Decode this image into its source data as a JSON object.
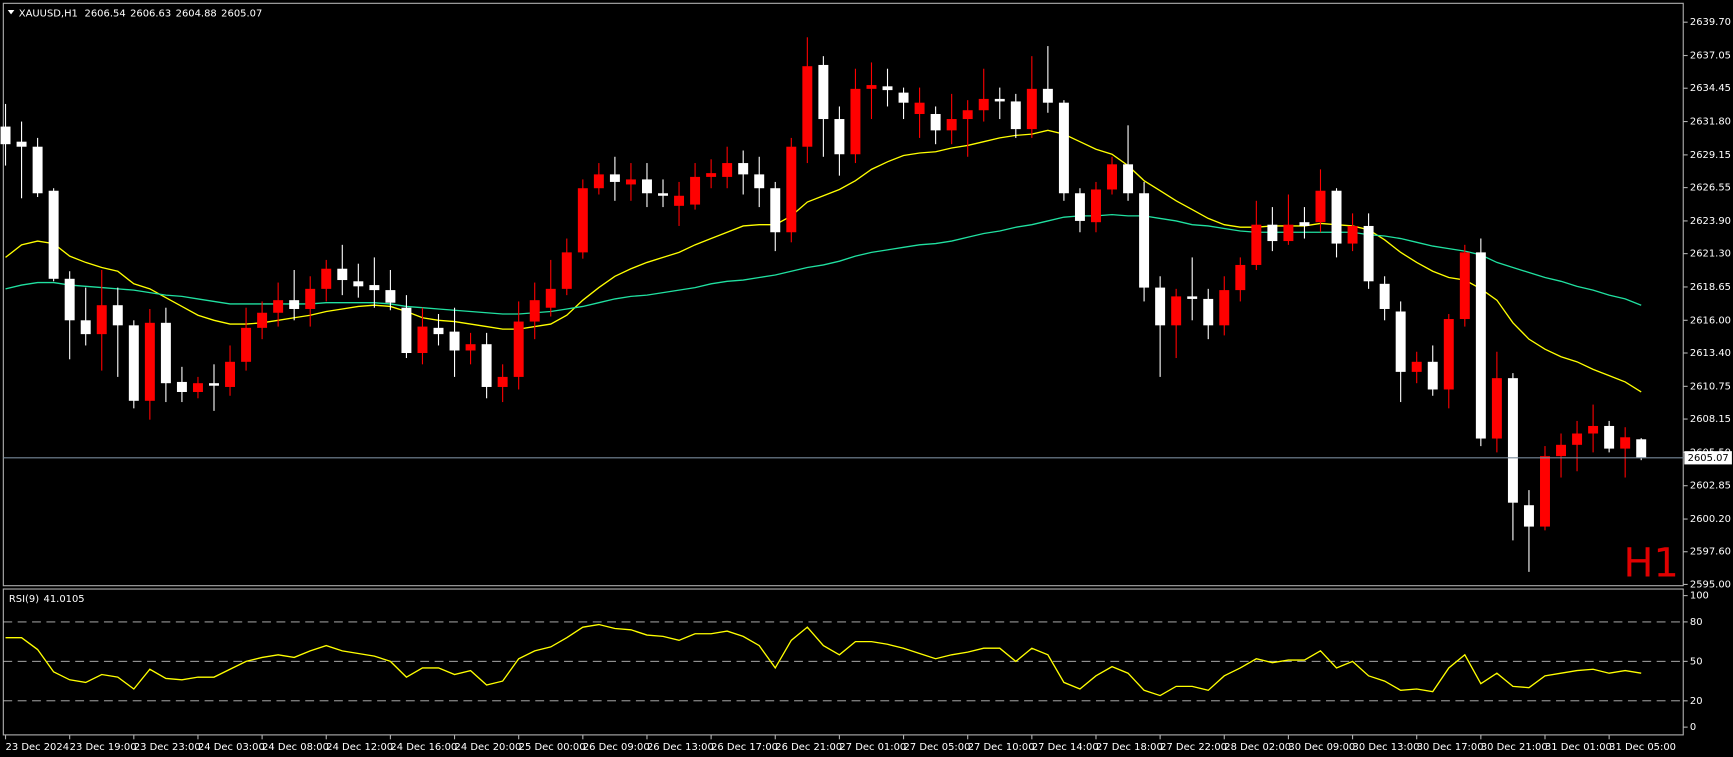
{
  "chart_data": [
    {
      "type": "candlestick",
      "symbol": "XAUUSD,H1",
      "timeframe": "H1",
      "up_color": "#ff0000",
      "down_color": "#ffffff",
      "price_line_color": "#778899",
      "categories": [
        "23 Dec 2024",
        null,
        null,
        null,
        "23 Dec 19:00",
        null,
        null,
        null,
        "23 Dec 23:00",
        null,
        null,
        null,
        "24 Dec 03:00",
        null,
        null,
        null,
        "24 Dec 08:00",
        null,
        null,
        null,
        "24 Dec 12:00",
        null,
        null,
        null,
        "24 Dec 16:00",
        null,
        null,
        null,
        "24 Dec 20:00",
        null,
        null,
        null,
        "25 Dec 00:00",
        null,
        null,
        null,
        "26 Dec 09:00",
        null,
        null,
        null,
        "26 Dec 13:00",
        null,
        null,
        null,
        "26 Dec 17:00",
        null,
        null,
        null,
        "26 Dec 21:00",
        null,
        null,
        null,
        "27 Dec 01:00",
        null,
        null,
        null,
        "27 Dec 05:00",
        null,
        null,
        null,
        "27 Dec 10:00",
        null,
        null,
        null,
        "27 Dec 14:00",
        null,
        null,
        null,
        "27 Dec 18:00",
        null,
        null,
        null,
        "27 Dec 22:00",
        null,
        null,
        null,
        "28 Dec 02:00",
        null,
        null,
        null,
        "30 Dec 09:00",
        null,
        null,
        null,
        "30 Dec 13:00",
        null,
        null,
        null,
        "30 Dec 17:00",
        null,
        null,
        null,
        "30 Dec 21:00",
        null,
        null,
        null,
        "31 Dec 01:00",
        null,
        null,
        null,
        "31 Dec 05:00",
        null,
        null
      ],
      "open": [
        2631.4,
        2630.2,
        2629.8,
        2626.3,
        2619.3,
        2616.0,
        2614.9,
        2617.2,
        2615.6,
        2609.6,
        2615.8,
        2611.1,
        2610.3,
        2611.0,
        2610.7,
        2612.7,
        2615.4,
        2616.6,
        2617.6,
        2616.9,
        2618.5,
        2620.1,
        2619.1,
        2618.8,
        2618.4,
        2617.0,
        2613.4,
        2615.4,
        2615.1,
        2613.6,
        2614.1,
        2610.7,
        2611.5,
        2615.9,
        2617.0,
        2618.5,
        2621.4,
        2626.5,
        2627.6,
        2626.8,
        2627.2,
        2626.1,
        2625.1,
        2625.2,
        2627.4,
        2627.4,
        2628.5,
        2627.6,
        2626.5,
        2623.0,
        2629.8,
        2636.3,
        2632.0,
        2629.2,
        2634.4,
        2634.6,
        2634.1,
        2632.4,
        2632.4,
        2631.1,
        2632.0,
        2632.7,
        2633.6,
        2633.4,
        2631.2,
        2634.4,
        2633.3,
        2626.1,
        2623.8,
        2626.4,
        2628.4,
        2626.1,
        2618.6,
        2615.6,
        2617.9,
        2617.7,
        2615.6,
        2618.4,
        2620.4,
        2623.6,
        2622.3,
        2623.8,
        2623.8,
        2626.3,
        2622.1,
        2623.5,
        2618.9,
        2616.7,
        2611.9,
        2612.7,
        2610.5,
        2616.1,
        2621.4,
        2606.6,
        2611.4,
        2601.3,
        2599.6,
        2605.2,
        2606.1,
        2607.0,
        2607.6,
        2605.8,
        2606.54
      ],
      "high": [
        2633.2,
        2631.8,
        2630.5,
        2626.5,
        2619.9,
        2618.6,
        2620.0,
        2618.6,
        2616.0,
        2616.9,
        2617.0,
        2612.3,
        2611.5,
        2612.5,
        2614.0,
        2617.0,
        2617.5,
        2619.0,
        2620.0,
        2619.5,
        2620.8,
        2622.0,
        2620.5,
        2621.0,
        2620.0,
        2618.0,
        2617.0,
        2616.5,
        2617.0,
        2615.0,
        2615.0,
        2612.5,
        2617.5,
        2619.0,
        2620.8,
        2622.5,
        2627.2,
        2628.5,
        2629.0,
        2628.5,
        2628.5,
        2627.2,
        2627.0,
        2628.5,
        2628.8,
        2629.8,
        2629.5,
        2629.0,
        2627.0,
        2630.5,
        2638.5,
        2637.0,
        2633.0,
        2636.0,
        2636.5,
        2636.0,
        2634.5,
        2634.5,
        2633.0,
        2634.0,
        2633.5,
        2636.0,
        2634.5,
        2634.0,
        2637.0,
        2637.8,
        2633.5,
        2626.5,
        2627.0,
        2629.0,
        2631.5,
        2627.0,
        2619.5,
        2618.5,
        2621.0,
        2618.5,
        2619.5,
        2621.0,
        2625.5,
        2625.0,
        2626.0,
        2625.0,
        2628.0,
        2626.5,
        2624.5,
        2624.5,
        2619.5,
        2617.5,
        2613.5,
        2614.0,
        2616.5,
        2622.0,
        2622.5,
        2613.5,
        2611.8,
        2602.5,
        2606.0,
        2607.0,
        2608.0,
        2609.3,
        2608.0,
        2607.5,
        2606.63
      ],
      "low": [
        2628.3,
        2625.7,
        2625.8,
        2619.1,
        2612.9,
        2614.0,
        2612.0,
        2611.5,
        2609.0,
        2608.1,
        2609.5,
        2609.5,
        2609.8,
        2608.8,
        2610.0,
        2612.0,
        2614.5,
        2615.5,
        2616.0,
        2615.5,
        2617.5,
        2618.0,
        2617.8,
        2617.0,
        2616.8,
        2613.0,
        2612.5,
        2614.0,
        2611.5,
        2612.5,
        2609.8,
        2609.5,
        2610.5,
        2614.5,
        2616.3,
        2618.0,
        2620.9,
        2626.0,
        2625.5,
        2625.5,
        2625.0,
        2625.0,
        2623.5,
        2624.8,
        2626.5,
        2626.5,
        2626.0,
        2625.0,
        2621.5,
        2622.2,
        2628.5,
        2629.0,
        2627.5,
        2628.5,
        2632.0,
        2633.0,
        2632.0,
        2630.5,
        2630.0,
        2630.0,
        2629.0,
        2631.8,
        2632.0,
        2630.5,
        2630.5,
        2632.5,
        2625.5,
        2623.0,
        2623.0,
        2626.0,
        2625.5,
        2617.5,
        2611.5,
        2613.0,
        2616.0,
        2614.5,
        2614.8,
        2617.5,
        2620.0,
        2621.5,
        2622.0,
        2622.5,
        2623.0,
        2621.0,
        2621.5,
        2618.5,
        2616.0,
        2609.5,
        2611.0,
        2610.0,
        2609.0,
        2615.5,
        2606.0,
        2605.5,
        2598.5,
        2596.0,
        2599.3,
        2603.5,
        2604.0,
        2605.5,
        2605.5,
        2603.5,
        2604.88
      ],
      "close": [
        2630.0,
        2629.8,
        2626.1,
        2619.3,
        2616.0,
        2614.9,
        2617.2,
        2615.6,
        2609.6,
        2615.8,
        2611.0,
        2610.3,
        2611.0,
        2610.8,
        2612.7,
        2615.4,
        2616.6,
        2617.6,
        2616.9,
        2618.5,
        2620.1,
        2619.2,
        2618.7,
        2618.4,
        2617.4,
        2613.4,
        2615.5,
        2614.9,
        2613.6,
        2614.1,
        2610.7,
        2611.5,
        2615.9,
        2617.6,
        2618.5,
        2621.4,
        2626.5,
        2627.6,
        2627.0,
        2627.2,
        2626.1,
        2625.9,
        2625.9,
        2627.4,
        2627.7,
        2628.5,
        2627.6,
        2626.5,
        2623.0,
        2629.8,
        2636.2,
        2632.0,
        2629.2,
        2634.4,
        2634.7,
        2634.3,
        2633.3,
        2633.3,
        2631.1,
        2632.0,
        2632.7,
        2633.6,
        2633.4,
        2631.2,
        2634.4,
        2633.3,
        2626.1,
        2623.9,
        2626.4,
        2628.4,
        2626.1,
        2618.6,
        2615.6,
        2617.9,
        2617.7,
        2615.6,
        2618.4,
        2620.4,
        2623.6,
        2622.3,
        2623.6,
        2623.5,
        2626.3,
        2622.1,
        2623.5,
        2619.1,
        2616.9,
        2611.9,
        2612.7,
        2610.5,
        2616.1,
        2621.4,
        2606.6,
        2611.4,
        2601.5,
        2599.6,
        2605.2,
        2606.1,
        2607.0,
        2607.6,
        2605.8,
        2606.7,
        2605.07
      ],
      "series": [
        {
          "color": "#ffff00",
          "values": [
            2621.0,
            2622.0,
            2622.3,
            2622.1,
            2621.1,
            2620.6,
            2620.2,
            2619.9,
            2618.9,
            2618.5,
            2617.8,
            2617.1,
            2616.4,
            2616.0,
            2615.7,
            2615.7,
            2615.8,
            2616.0,
            2616.2,
            2616.4,
            2616.7,
            2616.9,
            2617.1,
            2617.2,
            2617.1,
            2616.7,
            2616.2,
            2616.0,
            2615.9,
            2615.7,
            2615.5,
            2615.3,
            2615.3,
            2615.5,
            2615.7,
            2616.4,
            2617.6,
            2618.6,
            2619.5,
            2620.1,
            2620.6,
            2621.0,
            2621.4,
            2622.0,
            2622.5,
            2623.0,
            2623.5,
            2623.6,
            2623.6,
            2624.3,
            2625.4,
            2625.9,
            2626.4,
            2627.1,
            2628.0,
            2628.6,
            2629.1,
            2629.3,
            2629.4,
            2629.7,
            2629.9,
            2630.2,
            2630.5,
            2630.7,
            2630.8,
            2631.1,
            2630.8,
            2630.2,
            2629.6,
            2629.2,
            2628.3,
            2627.1,
            2626.3,
            2625.5,
            2624.8,
            2624.1,
            2623.6,
            2623.4,
            2623.4,
            2623.5,
            2623.5,
            2623.5,
            2623.7,
            2623.6,
            2623.5,
            2623.2,
            2622.4,
            2621.4,
            2620.6,
            2619.9,
            2619.4,
            2619.2,
            2618.5,
            2617.6,
            2615.8,
            2614.5,
            2613.7,
            2613.1,
            2612.7,
            2612.1,
            2611.6,
            2611.1,
            2610.3
          ]
        },
        {
          "color": "#20e0a0",
          "values": [
            2618.5,
            2618.8,
            2619.0,
            2619.0,
            2618.8,
            2618.7,
            2618.6,
            2618.5,
            2618.4,
            2618.2,
            2618.0,
            2617.9,
            2617.7,
            2617.5,
            2617.3,
            2617.3,
            2617.3,
            2617.3,
            2617.3,
            2617.3,
            2617.4,
            2617.4,
            2617.4,
            2617.4,
            2617.3,
            2617.1,
            2617.0,
            2616.9,
            2616.8,
            2616.7,
            2616.6,
            2616.5,
            2616.5,
            2616.6,
            2616.7,
            2616.9,
            2617.1,
            2617.4,
            2617.7,
            2617.9,
            2618.0,
            2618.2,
            2618.4,
            2618.6,
            2618.9,
            2619.1,
            2619.2,
            2619.4,
            2619.6,
            2619.9,
            2620.2,
            2620.4,
            2620.7,
            2621.1,
            2621.4,
            2621.6,
            2621.8,
            2622.0,
            2622.1,
            2622.3,
            2622.6,
            2622.9,
            2623.1,
            2623.4,
            2623.6,
            2623.9,
            2624.2,
            2624.3,
            2624.3,
            2624.4,
            2624.3,
            2624.3,
            2624.1,
            2623.9,
            2623.6,
            2623.5,
            2623.3,
            2623.1,
            2623.0,
            2623.0,
            2623.0,
            2623.0,
            2623.0,
            2623.0,
            2623.0,
            2622.8,
            2622.7,
            2622.5,
            2622.2,
            2621.9,
            2621.7,
            2621.5,
            2621.2,
            2620.6,
            2620.2,
            2619.8,
            2619.4,
            2619.1,
            2618.7,
            2618.4,
            2618.0,
            2617.7,
            2617.2
          ]
        }
      ],
      "ylim": [
        2594.9,
        2641.2
      ],
      "yticks": [
        {
          "value": 2639.7,
          "label": "2639.70"
        },
        2637.05,
        2634.45,
        {
          "value": 2631.8,
          "label": "2631.80"
        },
        2629.15,
        2626.55,
        {
          "value": 2623.9,
          "label": "2623.90"
        },
        {
          "value": 2621.3,
          "label": "2621.30"
        },
        2618.65,
        {
          "value": 2616,
          "label": "2616.00"
        },
        {
          "value": 2613.4,
          "label": "2613.40"
        },
        2610.75,
        2608.15,
        {
          "value": 2605.5,
          "label": "2605.50"
        },
        2602.85,
        {
          "value": 2600.2,
          "label": "2600.20"
        },
        {
          "value": 2597.6,
          "label": "2597.60"
        },
        {
          "value": 2595,
          "label": "2595.00"
        }
      ]
    },
    {
      "type": "line",
      "title": "RSI(9)",
      "color": "#ffff00",
      "values": [
        68,
        68,
        59,
        42,
        36,
        34,
        40,
        38,
        29,
        44,
        37,
        36,
        38,
        38,
        44,
        50,
        53,
        55,
        53,
        58,
        62,
        58,
        56,
        54,
        50,
        38,
        45,
        45,
        40,
        43,
        32,
        35,
        52,
        58,
        61,
        68,
        76,
        78,
        75,
        74,
        70,
        69,
        66,
        71,
        71,
        73,
        69,
        62,
        45,
        66,
        76,
        62,
        55,
        65,
        65,
        63,
        60,
        56,
        52,
        55,
        57,
        60,
        60,
        50,
        60,
        55,
        34,
        29,
        39,
        46,
        41,
        28,
        24,
        31,
        31,
        28,
        39,
        45,
        52,
        49,
        51,
        51,
        58,
        45,
        50,
        39,
        35,
        28,
        29,
        27,
        45,
        55,
        33,
        41,
        31,
        30,
        39,
        41,
        43,
        44,
        41,
        43,
        41.0105
      ],
      "ylim": [
        -5.9,
        105
      ],
      "yticks": [
        0,
        20,
        50,
        80,
        100
      ]
    }
  ]
}
